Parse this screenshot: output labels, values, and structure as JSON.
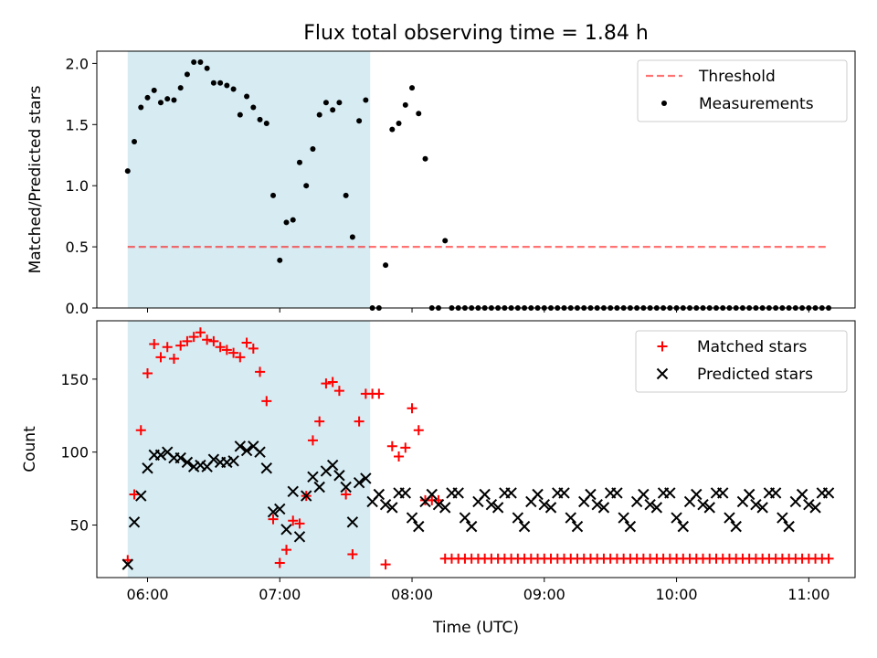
{
  "figure": {
    "title": "Flux total observing time = 1.84 h",
    "xlabel": "Time (UTC)"
  },
  "chart_data": [
    {
      "type": "scatter",
      "ylabel": "Matched/Predicted stars",
      "ylim": [
        0,
        2.1
      ],
      "xlim": [
        "05:37",
        "11:21"
      ],
      "grid": false,
      "legend_position": "top-right",
      "shaded_region": {
        "x": [
          "05:51",
          "07:41"
        ],
        "color": "#add8e6"
      },
      "x_tick_labels": [],
      "y_ticks": [
        0.0,
        0.5,
        1.0,
        1.5,
        2.0
      ],
      "y_tick_labels": [
        "0.0",
        "0.5",
        "1.0",
        "1.5",
        "2.0"
      ],
      "threshold": {
        "name": "Threshold",
        "value": 0.5,
        "x": [
          "05:51",
          "11:08"
        ],
        "color": "#ff0000",
        "style": "dashed"
      },
      "series": [
        {
          "name": "Measurements",
          "color": "#000000",
          "marker": "dot",
          "x": [
            "05:51",
            "05:54",
            "05:57",
            "06:00",
            "06:03",
            "06:06",
            "06:09",
            "06:12",
            "06:15",
            "06:18",
            "06:21",
            "06:24",
            "06:27",
            "06:30",
            "06:33",
            "06:36",
            "06:39",
            "06:42",
            "06:45",
            "06:48",
            "06:51",
            "06:54",
            "06:57",
            "07:00",
            "07:03",
            "07:06",
            "07:09",
            "07:12",
            "07:15",
            "07:18",
            "07:21",
            "07:24",
            "07:27",
            "07:30",
            "07:33",
            "07:36",
            "07:39",
            "07:42",
            "07:45",
            "07:48",
            "07:51",
            "07:54",
            "07:57",
            "08:00",
            "08:03",
            "08:06",
            "08:09",
            "08:12",
            "08:15",
            "08:18",
            "08:21",
            "08:24",
            "08:27",
            "08:30",
            "08:33",
            "08:36",
            "08:39",
            "08:42",
            "08:45",
            "08:48",
            "08:51",
            "08:54",
            "08:57",
            "09:00",
            "09:03",
            "09:06",
            "09:09",
            "09:12",
            "09:15",
            "09:18",
            "09:21",
            "09:24",
            "09:27",
            "09:30",
            "09:33",
            "09:36",
            "09:39",
            "09:42",
            "09:45",
            "09:48",
            "09:51",
            "09:54",
            "09:57",
            "10:00",
            "10:03",
            "10:06",
            "10:09",
            "10:12",
            "10:15",
            "10:18",
            "10:21",
            "10:24",
            "10:27",
            "10:30",
            "10:33",
            "10:36",
            "10:39",
            "10:42",
            "10:45",
            "10:48",
            "10:51",
            "10:54",
            "10:57",
            "11:00",
            "11:03",
            "11:06",
            "11:09"
          ],
          "y": [
            1.12,
            1.36,
            1.64,
            1.72,
            1.78,
            1.68,
            1.71,
            1.7,
            1.8,
            1.91,
            2.01,
            2.01,
            1.96,
            1.84,
            1.84,
            1.82,
            1.79,
            1.58,
            1.73,
            1.64,
            1.54,
            1.51,
            0.92,
            0.39,
            0.7,
            0.72,
            1.19,
            1.0,
            1.3,
            1.58,
            1.68,
            1.62,
            1.68,
            0.92,
            0.58,
            1.53,
            1.7,
            0.0,
            0.0,
            0.35,
            1.46,
            1.51,
            1.66,
            1.8,
            1.59,
            1.22,
            0.0,
            0.0,
            0.55,
            0.0,
            0.0,
            0.0,
            0.0,
            0.0,
            0.0,
            0.0,
            0.0,
            0.0,
            0.0,
            0.0,
            0.0,
            0.0,
            0.0,
            0.0,
            0.0,
            0.0,
            0.0,
            0.0,
            0.0,
            0.0,
            0.0,
            0.0,
            0.0,
            0.0,
            0.0,
            0.0,
            0.0,
            0.0,
            0.0,
            0.0,
            0.0,
            0.0,
            0.0,
            0.0,
            0.0,
            0.0,
            0.0,
            0.0,
            0.0,
            0.0,
            0.0,
            0.0,
            0.0,
            0.0,
            0.0,
            0.0,
            0.0,
            0.0,
            0.0,
            0.0,
            0.0,
            0.0,
            0.0,
            0.0,
            0.0,
            0.0,
            0.0
          ]
        }
      ]
    },
    {
      "type": "scatter",
      "ylabel": "Count",
      "ylim": [
        14,
        190
      ],
      "xlim": [
        "05:37",
        "11:21"
      ],
      "grid": false,
      "legend_position": "top-right",
      "shaded_region": {
        "x": [
          "05:51",
          "07:41"
        ],
        "color": "#add8e6"
      },
      "x_tick_labels": [
        "06:00",
        "07:00",
        "08:00",
        "09:00",
        "10:00",
        "11:00"
      ],
      "y_ticks": [
        50,
        100,
        150
      ],
      "y_tick_labels": [
        "50",
        "100",
        "150"
      ],
      "series": [
        {
          "name": "Matched stars",
          "color": "#ff0000",
          "marker": "plus",
          "x": [
            "05:51",
            "05:54",
            "05:57",
            "06:00",
            "06:03",
            "06:06",
            "06:09",
            "06:12",
            "06:15",
            "06:18",
            "06:21",
            "06:24",
            "06:27",
            "06:30",
            "06:33",
            "06:36",
            "06:39",
            "06:42",
            "06:45",
            "06:48",
            "06:51",
            "06:54",
            "06:57",
            "07:00",
            "07:03",
            "07:06",
            "07:09",
            "07:12",
            "07:15",
            "07:18",
            "07:21",
            "07:24",
            "07:27",
            "07:30",
            "07:33",
            "07:36",
            "07:39",
            "07:42",
            "07:45",
            "07:48",
            "07:51",
            "07:54",
            "07:57",
            "08:00",
            "08:03",
            "08:06",
            "08:09",
            "08:12",
            "08:15",
            "08:18",
            "08:21",
            "08:24",
            "08:27",
            "08:30",
            "08:33",
            "08:36",
            "08:39",
            "08:42",
            "08:45",
            "08:48",
            "08:51",
            "08:54",
            "08:57",
            "09:00",
            "09:03",
            "09:06",
            "09:09",
            "09:12",
            "09:15",
            "09:18",
            "09:21",
            "09:24",
            "09:27",
            "09:30",
            "09:33",
            "09:36",
            "09:39",
            "09:42",
            "09:45",
            "09:48",
            "09:51",
            "09:54",
            "09:57",
            "10:00",
            "10:03",
            "10:06",
            "10:09",
            "10:12",
            "10:15",
            "10:18",
            "10:21",
            "10:24",
            "10:27",
            "10:30",
            "10:33",
            "10:36",
            "10:39",
            "10:42",
            "10:45",
            "10:48",
            "10:51",
            "10:54",
            "10:57",
            "11:00",
            "11:03",
            "11:06",
            "11:09"
          ],
          "y": [
            26,
            71,
            115,
            154,
            174,
            165,
            172,
            164,
            173,
            176,
            179,
            182,
            177,
            176,
            172,
            170,
            168,
            165,
            175,
            171,
            155,
            135,
            54,
            24,
            33,
            53,
            51,
            70,
            108,
            121,
            147,
            148,
            142,
            71,
            30,
            121,
            140,
            140,
            140,
            23,
            104,
            97,
            103,
            130,
            115,
            67,
            67,
            67,
            27,
            27,
            27,
            27,
            27,
            27,
            27,
            27,
            27,
            27,
            27,
            27,
            27,
            27,
            27,
            27,
            27,
            27,
            27,
            27,
            27,
            27,
            27,
            27,
            27,
            27,
            27,
            27,
            27,
            27,
            27,
            27,
            27,
            27,
            27,
            27,
            27,
            27,
            27,
            27,
            27,
            27,
            27,
            27,
            27,
            27,
            27,
            27,
            27,
            27,
            27,
            27,
            27,
            27,
            27,
            27,
            27,
            27,
            27
          ]
        },
        {
          "name": "Predicted stars",
          "color": "#000000",
          "marker": "x",
          "x": [
            "05:51",
            "05:54",
            "05:57",
            "06:00",
            "06:03",
            "06:06",
            "06:09",
            "06:12",
            "06:15",
            "06:18",
            "06:21",
            "06:24",
            "06:27",
            "06:30",
            "06:33",
            "06:36",
            "06:39",
            "06:42",
            "06:45",
            "06:48",
            "06:51",
            "06:54",
            "06:57",
            "07:00",
            "07:03",
            "07:06",
            "07:09",
            "07:12",
            "07:15",
            "07:18",
            "07:21",
            "07:24",
            "07:27",
            "07:30",
            "07:33",
            "07:36",
            "07:39",
            "07:42",
            "07:45",
            "07:48",
            "07:51",
            "07:54",
            "07:57",
            "08:00",
            "08:03",
            "08:06",
            "08:09",
            "08:12",
            "08:15",
            "08:18",
            "08:21",
            "08:24",
            "08:27",
            "08:30",
            "08:33",
            "08:36",
            "08:39",
            "08:42",
            "08:45",
            "08:48",
            "08:51",
            "08:54",
            "08:57",
            "09:00",
            "09:03",
            "09:06",
            "09:09",
            "09:12",
            "09:15",
            "09:18",
            "09:21",
            "09:24",
            "09:27",
            "09:30",
            "09:33",
            "09:36",
            "09:39",
            "09:42",
            "09:45",
            "09:48",
            "09:51",
            "09:54",
            "09:57",
            "10:00",
            "10:03",
            "10:06",
            "10:09",
            "10:12",
            "10:15",
            "10:18",
            "10:21",
            "10:24",
            "10:27",
            "10:30",
            "10:33",
            "10:36",
            "10:39",
            "10:42",
            "10:45",
            "10:48",
            "10:51",
            "10:54",
            "10:57",
            "11:00",
            "11:03",
            "11:06",
            "11:09"
          ],
          "y": [
            23,
            52,
            70,
            89,
            98,
            98,
            100,
            96,
            96,
            93,
            90,
            91,
            90,
            95,
            93,
            93,
            94,
            104,
            101,
            104,
            100,
            89,
            59,
            61,
            47,
            73,
            42,
            70,
            83,
            76,
            87,
            91,
            84,
            76,
            52,
            79,
            82,
            66,
            71,
            64,
            62,
            72,
            72,
            55,
            49,
            66,
            71,
            64,
            62,
            72,
            72,
            55,
            49,
            66,
            71,
            64,
            62,
            72,
            72,
            55,
            49,
            66,
            71,
            64,
            62,
            72,
            72,
            55,
            49,
            66,
            71,
            64,
            62,
            72,
            72,
            55,
            49,
            66,
            71,
            64,
            62,
            72,
            72,
            55,
            49,
            66,
            71,
            64,
            62,
            72,
            72,
            55,
            49,
            66,
            71,
            64,
            62,
            72,
            72,
            55,
            49,
            66,
            71,
            64,
            62,
            72,
            72
          ]
        }
      ]
    }
  ]
}
